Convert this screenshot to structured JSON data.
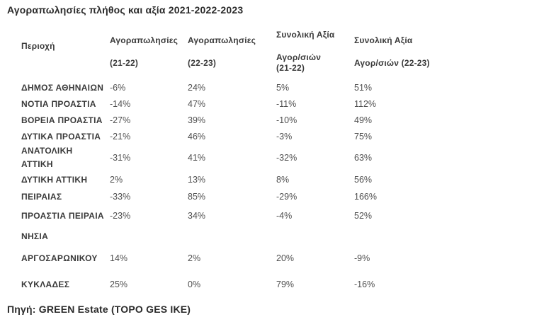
{
  "title": "Αγοραπωλησίες πλήθος και αξία 2021-2022-2023",
  "table": {
    "columns": [
      {
        "line1": "Περιοχή",
        "line2": ""
      },
      {
        "line1": "Αγοραπωλησίες",
        "line2": "(21-22)"
      },
      {
        "line1": "Αγοραπωλησίες",
        "line2": "(22-23)"
      },
      {
        "line1": "Συνολική Αξία",
        "line2": "Αγορ/σιών (21-22)"
      },
      {
        "line1": "Συνολική Αξία",
        "line2": "Αγορ/σιών (22-23)"
      }
    ],
    "rows": [
      {
        "region": "ΔΗΜΟΣ ΑΘΗΝΑΙΩΝ",
        "section": false,
        "values": [
          "-6%",
          "24%",
          "5%",
          "51%"
        ]
      },
      {
        "region": "ΝΟΤΙΑ ΠΡΟΑΣΤΙΑ",
        "section": false,
        "values": [
          "-14%",
          "47%",
          "-11%",
          "112%"
        ]
      },
      {
        "region": "ΒΟΡΕΙΑ ΠΡΟΑΣΤΙΑ",
        "section": false,
        "values": [
          "-27%",
          "39%",
          "-10%",
          "49%"
        ]
      },
      {
        "region": "ΔΥΤΙΚΑ ΠΡΟΑΣΤΙΑ",
        "section": false,
        "values": [
          "-21%",
          "46%",
          "-3%",
          "75%"
        ]
      },
      {
        "region": "ΑΝΑΤΟΛΙΚΗ ΑΤΤΙΚΗ",
        "section": false,
        "values": [
          "-31%",
          "41%",
          "-32%",
          "63%"
        ]
      },
      {
        "region": "ΔΥΤΙΚΗ ΑΤΤΙΚΗ",
        "section": false,
        "values": [
          "2%",
          "13%",
          "8%",
          "56%"
        ]
      },
      {
        "region": "ΠΕΙΡΑΙΑΣ",
        "section": false,
        "values": [
          "-33%",
          "85%",
          "-29%",
          "166%"
        ]
      },
      {
        "region": "ΠΡΟΑΣΤΙΑ ΠΕΙΡΑΙΑ",
        "section": false,
        "values": [
          "-23%",
          "34%",
          "-4%",
          "52%"
        ]
      },
      {
        "region": "ΝΗΣΙΑ",
        "section": true,
        "values": [
          "",
          "",
          "",
          ""
        ]
      },
      {
        "region": "ΑΡΓΟΣΑΡΩΝΙΚΟΥ",
        "section": false,
        "values": [
          "14%",
          "2%",
          "20%",
          "-9%"
        ]
      },
      {
        "region": "ΚΥΚΛΑΔΕΣ",
        "section": false,
        "values": [
          "25%",
          "0%",
          "79%",
          "-16%"
        ]
      }
    ]
  },
  "footer": "Πηγή: GREEN Estate (TOPO GES IKE)",
  "colors": {
    "background": "#ffffff",
    "title_text": "#2b2b2b",
    "header_text": "#3a3a3a",
    "region_text": "#3a3a3a",
    "value_text": "#4f4f4f"
  }
}
